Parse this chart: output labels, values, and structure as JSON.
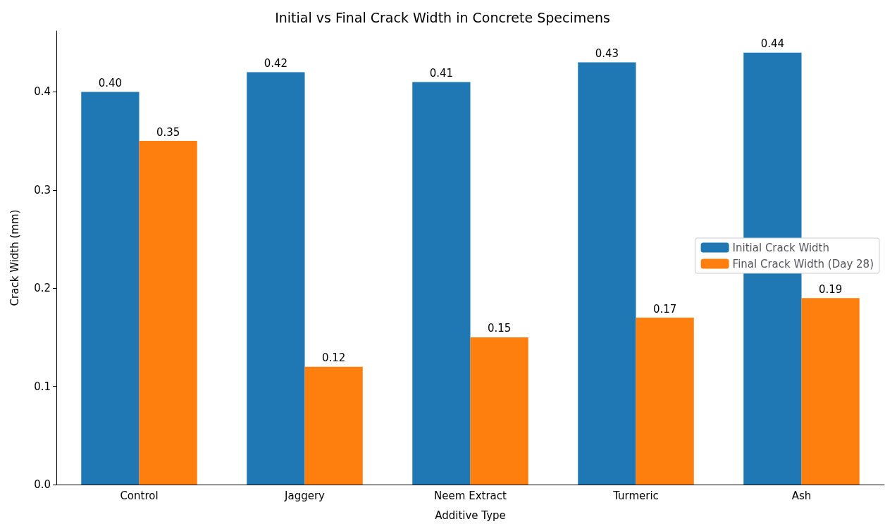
{
  "chart_data": {
    "type": "bar",
    "title": "Initial vs Final Crack Width in Concrete Specimens",
    "xlabel": "Additive Type",
    "ylabel": "Crack Width (mm)",
    "categories": [
      "Control",
      "Jaggery",
      "Neem Extract",
      "Turmeric",
      "Ash"
    ],
    "series": [
      {
        "name": "Initial Crack Width",
        "color": "#1f77b4",
        "values": [
          0.4,
          0.42,
          0.41,
          0.43,
          0.44
        ],
        "value_labels": [
          "0.40",
          "0.42",
          "0.41",
          "0.43",
          "0.44"
        ]
      },
      {
        "name": "Final Crack Width (Day 28)",
        "color": "#ff7f0e",
        "values": [
          0.35,
          0.12,
          0.15,
          0.17,
          0.19
        ],
        "value_labels": [
          "0.35",
          "0.12",
          "0.15",
          "0.17",
          "0.19"
        ]
      }
    ],
    "ylim": [
      0,
      0.462
    ],
    "yticks": [
      {
        "value": 0,
        "label": "0.0"
      },
      {
        "value": 0.1,
        "label": "0.1"
      },
      {
        "value": 0.2,
        "label": "0.2"
      },
      {
        "value": 0.3,
        "label": "0.3"
      },
      {
        "value": 0.4,
        "label": "0.4"
      }
    ],
    "grid": false,
    "legend": "right"
  }
}
